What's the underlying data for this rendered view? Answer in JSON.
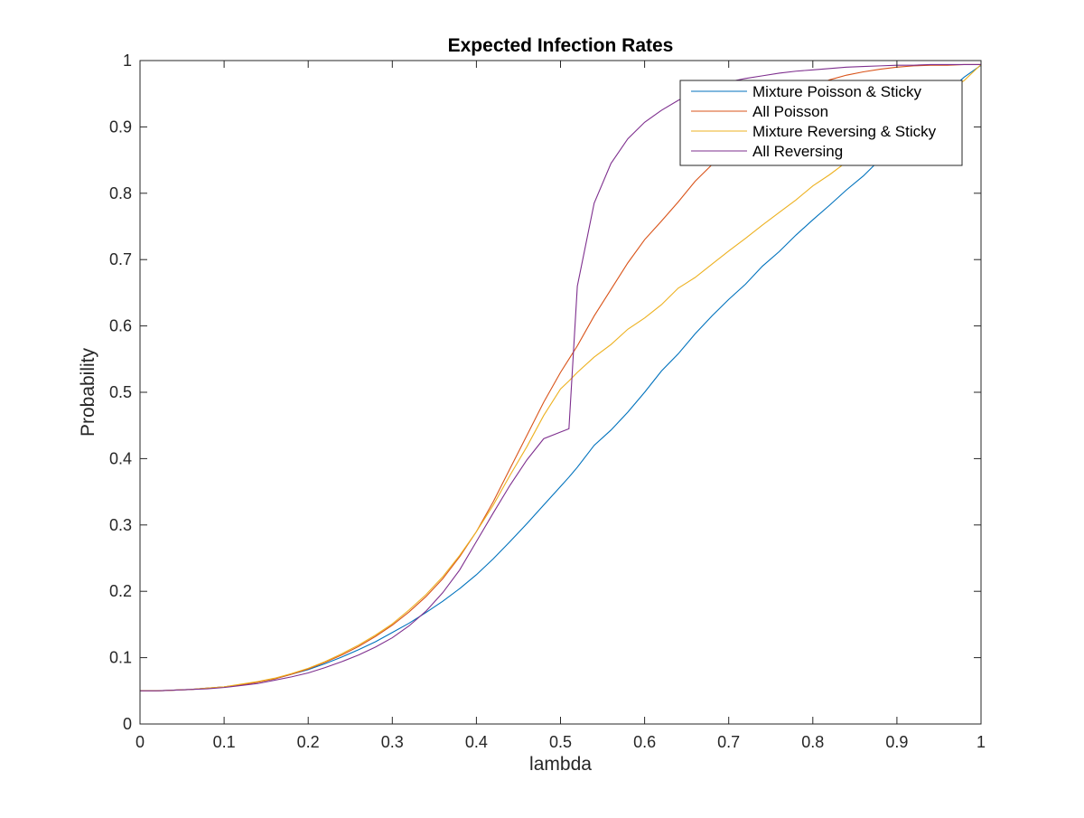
{
  "chart_data": {
    "type": "line",
    "title": "Expected Infection Rates",
    "xlabel": "lambda",
    "ylabel": "Probability",
    "xlim": [
      0,
      1
    ],
    "ylim": [
      0,
      1
    ],
    "grid": false,
    "legend_position": "top-right",
    "x_ticks": [
      0,
      0.1,
      0.2,
      0.3,
      0.4,
      0.5,
      0.6,
      0.7,
      0.8,
      0.9,
      1
    ],
    "x_tick_labels": [
      "0",
      "0.1",
      "0.2",
      "0.3",
      "0.4",
      "0.5",
      "0.6",
      "0.7",
      "0.8",
      "0.9",
      "1"
    ],
    "y_ticks": [
      0,
      0.1,
      0.2,
      0.3,
      0.4,
      0.5,
      0.6,
      0.7,
      0.8,
      0.9,
      1
    ],
    "y_tick_labels": [
      "0",
      "0.1",
      "0.2",
      "0.3",
      "0.4",
      "0.5",
      "0.6",
      "0.7",
      "0.8",
      "0.9",
      "1"
    ],
    "x": [
      0,
      0.02,
      0.04,
      0.06,
      0.08,
      0.1,
      0.12,
      0.14,
      0.16,
      0.18,
      0.2,
      0.22,
      0.24,
      0.26,
      0.28,
      0.3,
      0.32,
      0.34,
      0.36,
      0.38,
      0.4,
      0.42,
      0.44,
      0.46,
      0.48,
      0.5,
      0.51,
      0.52,
      0.54,
      0.56,
      0.58,
      0.6,
      0.62,
      0.64,
      0.66,
      0.68,
      0.7,
      0.72,
      0.74,
      0.76,
      0.78,
      0.8,
      0.82,
      0.84,
      0.86,
      0.88,
      0.9,
      0.92,
      0.94,
      0.96,
      0.98,
      1
    ],
    "series": [
      {
        "name": "Mixture Poisson & Sticky",
        "color": "#0072BD",
        "values": [
          0.05,
          0.05,
          0.051,
          0.052,
          0.054,
          0.056,
          0.059,
          0.063,
          0.068,
          0.075,
          0.082,
          0.091,
          0.101,
          0.112,
          0.124,
          0.138,
          0.152,
          0.168,
          0.185,
          0.204,
          0.225,
          0.249,
          0.275,
          0.302,
          0.33,
          0.358,
          0.372,
          0.387,
          0.42,
          0.443,
          0.47,
          0.5,
          0.532,
          0.558,
          0.588,
          0.615,
          0.64,
          0.663,
          0.69,
          0.712,
          0.737,
          0.76,
          0.782,
          0.805,
          0.826,
          0.851,
          0.875,
          0.9,
          0.926,
          0.953,
          0.975,
          0.993
        ]
      },
      {
        "name": "All Poisson",
        "color": "#D95319",
        "values": [
          0.05,
          0.05,
          0.051,
          0.052,
          0.054,
          0.056,
          0.059,
          0.063,
          0.068,
          0.075,
          0.083,
          0.093,
          0.104,
          0.117,
          0.132,
          0.149,
          0.169,
          0.192,
          0.219,
          0.252,
          0.29,
          0.335,
          0.385,
          0.435,
          0.485,
          0.53,
          0.55,
          0.57,
          0.615,
          0.655,
          0.695,
          0.73,
          0.758,
          0.787,
          0.818,
          0.843,
          0.868,
          0.893,
          0.915,
          0.933,
          0.948,
          0.961,
          0.971,
          0.978,
          0.983,
          0.987,
          0.99,
          0.992,
          0.993,
          0.993,
          0.994,
          0.994
        ]
      },
      {
        "name": "Mixture Reversing & Sticky",
        "color": "#EDB120",
        "values": [
          0.05,
          0.05,
          0.051,
          0.052,
          0.054,
          0.056,
          0.06,
          0.064,
          0.069,
          0.076,
          0.084,
          0.094,
          0.106,
          0.119,
          0.134,
          0.151,
          0.172,
          0.195,
          0.222,
          0.254,
          0.29,
          0.33,
          0.375,
          0.418,
          0.465,
          0.505,
          0.517,
          0.53,
          0.553,
          0.572,
          0.595,
          0.612,
          0.632,
          0.657,
          0.673,
          0.693,
          0.713,
          0.732,
          0.752,
          0.771,
          0.79,
          0.811,
          0.828,
          0.847,
          0.866,
          0.884,
          0.9,
          0.918,
          0.936,
          0.953,
          0.97,
          0.994
        ]
      },
      {
        "name": "All Reversing",
        "color": "#7E2F8E",
        "values": [
          0.05,
          0.05,
          0.051,
          0.052,
          0.053,
          0.055,
          0.058,
          0.061,
          0.066,
          0.071,
          0.077,
          0.085,
          0.094,
          0.104,
          0.116,
          0.13,
          0.148,
          0.17,
          0.198,
          0.232,
          0.275,
          0.318,
          0.36,
          0.398,
          0.43,
          0.44,
          0.445,
          0.66,
          0.785,
          0.845,
          0.882,
          0.907,
          0.925,
          0.94,
          0.952,
          0.961,
          0.968,
          0.973,
          0.977,
          0.981,
          0.984,
          0.986,
          0.988,
          0.99,
          0.991,
          0.992,
          0.993,
          0.993,
          0.994,
          0.994,
          0.994,
          0.994
        ]
      }
    ]
  }
}
